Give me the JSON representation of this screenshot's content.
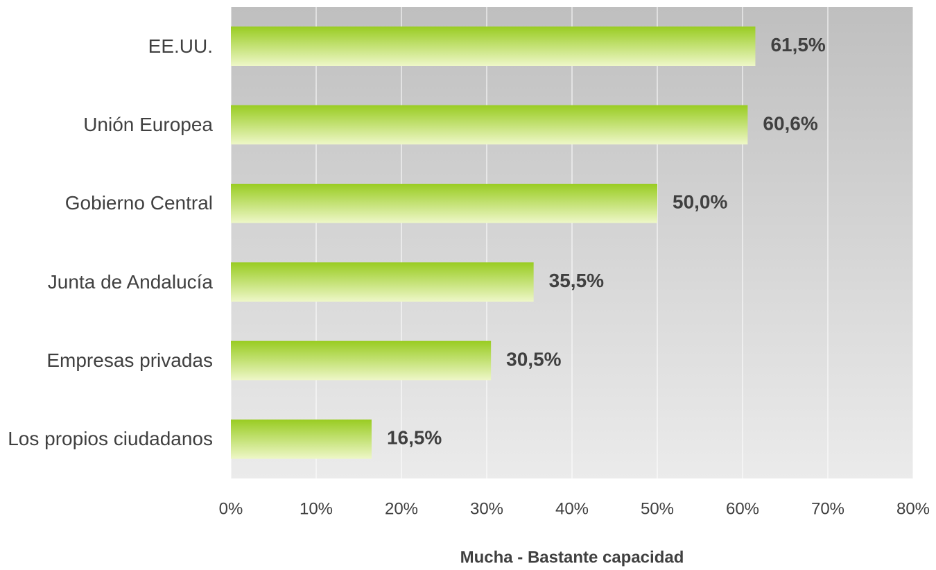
{
  "chart_data": {
    "type": "bar",
    "orientation": "horizontal",
    "x_label": "Mucha - Bastante capacidad",
    "categories": [
      "EE.UU.",
      "Unión Europea",
      "Gobierno Central",
      "Junta de Andalucía",
      "Empresas privadas",
      "Los propios ciudadanos"
    ],
    "values": [
      61.5,
      60.6,
      50.0,
      35.5,
      30.5,
      16.5
    ],
    "value_labels": [
      "61,5%",
      "60,6%",
      "50,0%",
      "35,5%",
      "30,5%",
      "16,5%"
    ],
    "color": "#99cc22",
    "xlim": [
      0,
      80
    ],
    "xticks": [
      {
        "value": 0,
        "label": "0%"
      },
      {
        "value": 10,
        "label": "10%"
      },
      {
        "value": 20,
        "label": "20%"
      },
      {
        "value": 30,
        "label": "30%"
      },
      {
        "value": 40,
        "label": "40%"
      },
      {
        "value": 50,
        "label": "50%"
      },
      {
        "value": 60,
        "label": "60%"
      },
      {
        "value": 70,
        "label": "70%"
      },
      {
        "value": 80,
        "label": "80%"
      }
    ],
    "grid": true
  }
}
